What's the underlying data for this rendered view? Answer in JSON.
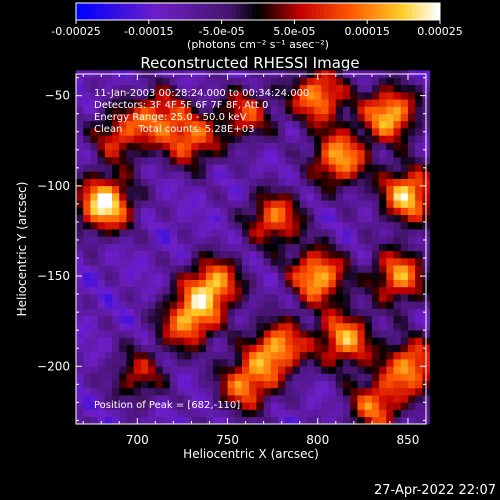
{
  "chart_data": {
    "type": "heatmap",
    "title": "Reconstructed RHESSI Image",
    "xlabel": "Heliocentric X (arcsec)",
    "ylabel": "Heliocentric Y (arcsec)",
    "xlim": [
      666,
      860
    ],
    "ylim": [
      -232,
      -38
    ],
    "x_ticks": [
      700,
      750,
      800,
      850
    ],
    "x_tick_labels": [
      "700",
      "750",
      "800",
      "850"
    ],
    "y_ticks": [
      -50,
      -100,
      -150,
      -200
    ],
    "y_tick_labels": [
      "−50",
      "−100",
      "−150",
      "−200"
    ],
    "colorbar": {
      "range": [
        -0.00025,
        0.00025
      ],
      "ticks": [
        -0.00025,
        -0.00015,
        -5e-05,
        5e-05,
        0.00015,
        0.00025
      ],
      "tick_labels": [
        "-0.00025",
        "-0.00015",
        "-5.0e-05",
        "5.0e-05",
        "0.00015",
        "0.00025"
      ],
      "unit_label": "(photons cm⁻² s⁻¹ asec⁻²)"
    },
    "info_lines": [
      "11-Jan-2003 00:28:24.000 to 00:34:24.000",
      "Detectors: 3F 4F 5F 6F 7F 8F, Att 0",
      "Energy Range: 25.0 - 50.0 keV",
      "Clean     Total counts: 5.28E+03"
    ],
    "peak_label": "Position of Peak = [682,-110]",
    "peak": {
      "x": 682,
      "y": -110
    },
    "hotspots": [
      {
        "x": 682,
        "y": -110,
        "value": 0.00025
      },
      {
        "x": 840,
        "y": -60,
        "value": 0.0002
      },
      {
        "x": 850,
        "y": -105,
        "value": 0.00021
      },
      {
        "x": 812,
        "y": -85,
        "value": 0.00018
      },
      {
        "x": 800,
        "y": -50,
        "value": 0.00017
      },
      {
        "x": 742,
        "y": -155,
        "value": 0.00019
      },
      {
        "x": 728,
        "y": -175,
        "value": 0.00017
      },
      {
        "x": 778,
        "y": -190,
        "value": 0.00018
      },
      {
        "x": 760,
        "y": -210,
        "value": 0.00015
      },
      {
        "x": 800,
        "y": -150,
        "value": 0.0002
      },
      {
        "x": 815,
        "y": -185,
        "value": 0.00017
      },
      {
        "x": 845,
        "y": -150,
        "value": 0.00016
      },
      {
        "x": 852,
        "y": -200,
        "value": 0.00017
      },
      {
        "x": 776,
        "y": -118,
        "value": 0.00014
      },
      {
        "x": 730,
        "y": -75,
        "value": 0.00012
      },
      {
        "x": 712,
        "y": -60,
        "value": 0.0001
      },
      {
        "x": 690,
        "y": -72,
        "value": 9e-05
      },
      {
        "x": 760,
        "y": -60,
        "value": 9e-05
      },
      {
        "x": 832,
        "y": -222,
        "value": 0.00013
      },
      {
        "x": 700,
        "y": -205,
        "value": 6e-05
      }
    ]
  },
  "footer": {
    "timestamp": "27-Apr-2022 22:07"
  }
}
